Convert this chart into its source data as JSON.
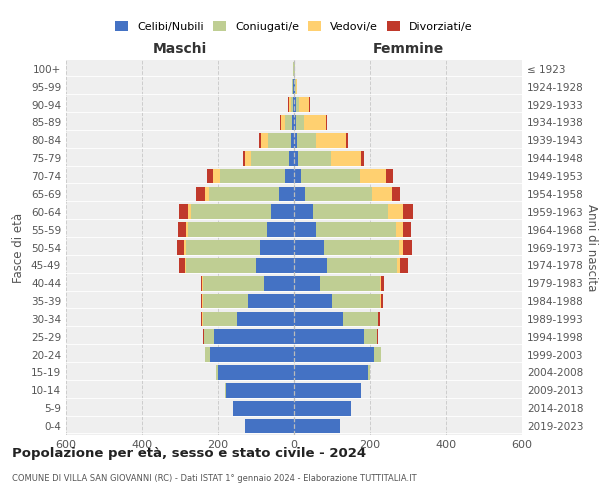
{
  "age_groups": [
    "0-4",
    "5-9",
    "10-14",
    "15-19",
    "20-24",
    "25-29",
    "30-34",
    "35-39",
    "40-44",
    "45-49",
    "50-54",
    "55-59",
    "60-64",
    "65-69",
    "70-74",
    "75-79",
    "80-84",
    "85-89",
    "90-94",
    "95-99",
    "100+"
  ],
  "birth_years": [
    "2019-2023",
    "2014-2018",
    "2009-2013",
    "2004-2008",
    "1999-2003",
    "1994-1998",
    "1989-1993",
    "1984-1988",
    "1979-1983",
    "1974-1978",
    "1969-1973",
    "1964-1968",
    "1959-1963",
    "1954-1958",
    "1949-1953",
    "1944-1948",
    "1939-1943",
    "1934-1938",
    "1929-1933",
    "1924-1928",
    "≤ 1923"
  ],
  "male": {
    "celibi": [
      130,
      160,
      180,
      200,
      220,
      210,
      150,
      120,
      80,
      100,
      90,
      70,
      60,
      40,
      25,
      12,
      8,
      5,
      3,
      2,
      1
    ],
    "coniugati": [
      0,
      0,
      1,
      4,
      15,
      28,
      90,
      120,
      160,
      185,
      195,
      210,
      210,
      185,
      170,
      100,
      60,
      18,
      5,
      2,
      1
    ],
    "vedovi": [
      0,
      0,
      0,
      0,
      0,
      0,
      1,
      1,
      1,
      2,
      4,
      4,
      8,
      8,
      18,
      18,
      18,
      12,
      5,
      1,
      0
    ],
    "divorziati": [
      0,
      0,
      0,
      0,
      0,
      1,
      3,
      5,
      5,
      15,
      20,
      20,
      25,
      25,
      15,
      5,
      5,
      2,
      2,
      0,
      0
    ]
  },
  "female": {
    "nubili": [
      120,
      150,
      175,
      195,
      210,
      185,
      130,
      100,
      68,
      88,
      78,
      58,
      50,
      28,
      18,
      10,
      7,
      5,
      4,
      2,
      1
    ],
    "coniugate": [
      0,
      0,
      1,
      4,
      18,
      33,
      90,
      125,
      158,
      182,
      198,
      210,
      198,
      178,
      155,
      88,
      52,
      22,
      8,
      2,
      1
    ],
    "vedove": [
      0,
      0,
      0,
      0,
      0,
      1,
      2,
      3,
      4,
      8,
      12,
      18,
      38,
      52,
      70,
      78,
      78,
      58,
      28,
      3,
      0
    ],
    "divorziate": [
      0,
      0,
      0,
      0,
      1,
      2,
      4,
      6,
      8,
      22,
      22,
      22,
      28,
      22,
      18,
      8,
      5,
      3,
      2,
      0,
      0
    ]
  },
  "color_celibi": "#4472C4",
  "color_coniugati": "#BFCE93",
  "color_vedovi": "#FFD070",
  "color_divorziati": "#C0392B",
  "title_main": "Popolazione per età, sesso e stato civile - 2024",
  "title_sub": "COMUNE DI VILLA SAN GIOVANNI (RC) - Dati ISTAT 1° gennaio 2024 - Elaborazione TUTTITALIA.IT",
  "label_maschi": "Maschi",
  "label_femmine": "Femmine",
  "ylabel_left": "Fasce di età",
  "ylabel_right": "Anni di nascita",
  "legend_labels": [
    "Celibi/Nubili",
    "Coniugati/e",
    "Vedovi/e",
    "Divorziati/e"
  ],
  "xlim": 600,
  "background_color": "#efefef"
}
